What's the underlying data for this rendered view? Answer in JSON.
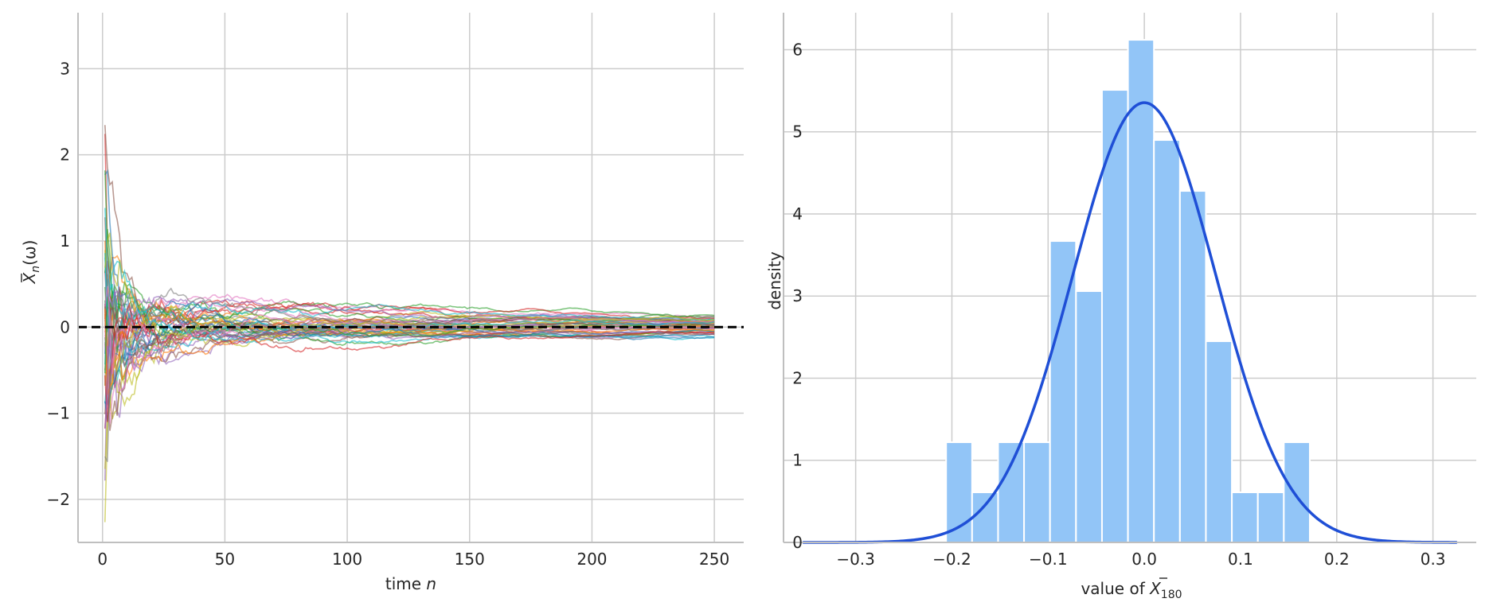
{
  "chart_data": [
    {
      "type": "line",
      "xlabel_text": "time ",
      "xlabel_var": "n",
      "ylabel": {
        "base": "X",
        "sub": "n",
        "arg": "(ω)"
      },
      "xlim": [
        -10,
        262
      ],
      "ylim": [
        -2.5,
        3.65
      ],
      "xticks": [
        0,
        50,
        100,
        150,
        200,
        250
      ],
      "xtick_labels": [
        "0",
        "50",
        "100",
        "150",
        "200",
        "250"
      ],
      "yticks": [
        -2,
        -1,
        0,
        1,
        2,
        3
      ],
      "ytick_labels": [
        "−2",
        "−1",
        "0",
        "1",
        "2",
        "3"
      ],
      "grid": true,
      "reference_line": {
        "y": 0,
        "style": "dashed",
        "color": "#000000"
      },
      "paths": {
        "count": 50,
        "n_min": 1,
        "n_max": 250,
        "colors": [
          "#1f77b4",
          "#ff7f0e",
          "#2ca02c",
          "#d62728",
          "#9467bd",
          "#8c564b",
          "#e377c2",
          "#7f7f7f",
          "#bcbd22",
          "#17becf"
        ]
      }
    },
    {
      "type": "bar",
      "xlabel": {
        "prefix": "value of ",
        "base": "X",
        "sub": "180"
      },
      "ylabel": "density",
      "xlim": [
        -0.375,
        0.345
      ],
      "ylim": [
        0,
        6.45
      ],
      "xticks": [
        -0.3,
        -0.2,
        -0.1,
        0.0,
        0.1,
        0.2,
        0.3
      ],
      "xtick_labels": [
        "−0.3",
        "−0.2",
        "−0.1",
        "0.0",
        "0.1",
        "0.2",
        "0.3"
      ],
      "yticks": [
        0,
        1,
        2,
        3,
        4,
        5,
        6
      ],
      "ytick_labels": [
        "0",
        "1",
        "2",
        "3",
        "4",
        "5",
        "6"
      ],
      "grid": true,
      "bins": {
        "left_edges": [
          -0.206,
          -0.179,
          -0.152,
          -0.125,
          -0.098,
          -0.071,
          -0.044,
          -0.017,
          0.01,
          0.037,
          0.064,
          0.091,
          0.118,
          0.145
        ],
        "width": 0.027,
        "density": [
          1.22,
          0.61,
          1.22,
          1.22,
          3.67,
          3.06,
          5.51,
          6.12,
          4.9,
          4.28,
          2.45,
          0.61,
          0.61,
          1.22
        ]
      },
      "bar_color": "#92c5f7",
      "density_curve": {
        "mu": 0.0,
        "sigma": 0.0745,
        "x_range": [
          -0.355,
          0.325
        ],
        "color": "#1f4fd6"
      }
    }
  ]
}
